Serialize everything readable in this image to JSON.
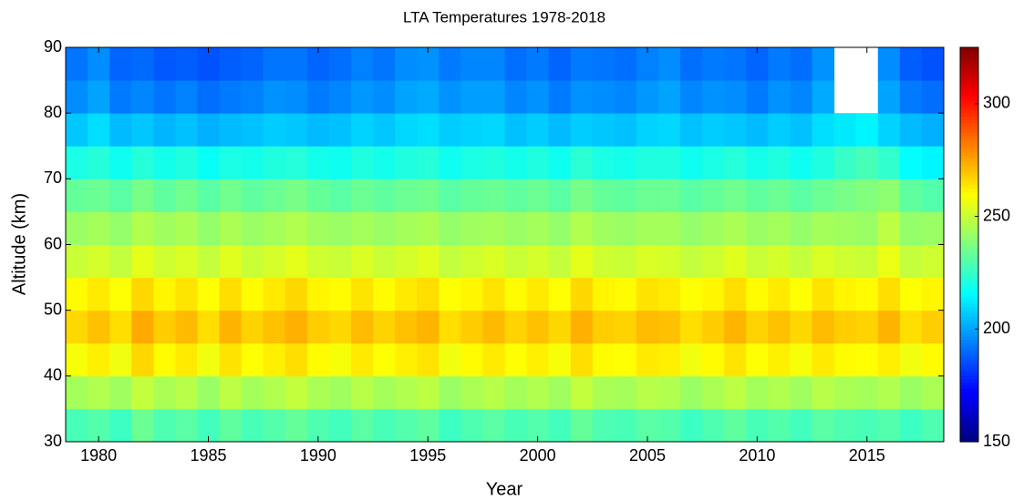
{
  "chart_data": {
    "type": "heatmap",
    "title": "LTA Temperatures 1978-2018",
    "x_label": "Year",
    "y_label": "Altitude (km)",
    "colormap": "jet",
    "x": [
      1979,
      1980,
      1981,
      1982,
      1983,
      1984,
      1985,
      1986,
      1987,
      1988,
      1989,
      1990,
      1991,
      1992,
      1993,
      1994,
      1995,
      1996,
      1997,
      1998,
      1999,
      2000,
      2001,
      2002,
      2003,
      2004,
      2005,
      2006,
      2007,
      2008,
      2009,
      2010,
      2011,
      2012,
      2013,
      2014,
      2015,
      2016,
      2017,
      2018
    ],
    "y": [
      32.5,
      37.5,
      42.5,
      47.5,
      52.5,
      57.5,
      62.5,
      67.5,
      72.5,
      77.5,
      82.5,
      87.5
    ],
    "xlim": [
      1978.5,
      2018.5
    ],
    "xticks": [
      1980,
      1985,
      1990,
      1995,
      2000,
      2005,
      2010,
      2015
    ],
    "ylim": [
      30,
      90
    ],
    "yticks": [
      30,
      40,
      50,
      60,
      70,
      80,
      90
    ],
    "zlim": [
      150,
      325
    ],
    "zticks": [
      150,
      200,
      250,
      300
    ],
    "z": [
      [
        228,
        230,
        226,
        234,
        229,
        231,
        227,
        232,
        228,
        230,
        233,
        229,
        227,
        231,
        228,
        230,
        232,
        226,
        229,
        231,
        228,
        230,
        227,
        233,
        229,
        228,
        231,
        230,
        226,
        229,
        232,
        228,
        230,
        227,
        231,
        229,
        228,
        230,
        226,
        229
      ],
      [
        244,
        246,
        243,
        249,
        245,
        247,
        242,
        248,
        244,
        246,
        249,
        245,
        243,
        247,
        244,
        246,
        248,
        242,
        245,
        247,
        244,
        246,
        243,
        249,
        245,
        244,
        247,
        246,
        242,
        245,
        248,
        244,
        246,
        243,
        247,
        245,
        244,
        246,
        242,
        245
      ],
      [
        258,
        262,
        257,
        266,
        260,
        263,
        257,
        264,
        259,
        262,
        265,
        260,
        258,
        263,
        259,
        262,
        264,
        257,
        260,
        263,
        259,
        262,
        258,
        265,
        260,
        259,
        263,
        262,
        257,
        260,
        264,
        259,
        262,
        258,
        263,
        260,
        259,
        262,
        257,
        260
      ],
      [
        266,
        270,
        265,
        274,
        268,
        271,
        265,
        272,
        267,
        270,
        273,
        268,
        266,
        271,
        267,
        270,
        272,
        265,
        268,
        271,
        267,
        270,
        266,
        273,
        268,
        267,
        271,
        270,
        265,
        268,
        272,
        267,
        270,
        266,
        271,
        268,
        267,
        272,
        265,
        268
      ],
      [
        260,
        263,
        259,
        266,
        261,
        264,
        259,
        265,
        260,
        263,
        266,
        261,
        260,
        264,
        260,
        263,
        265,
        259,
        261,
        264,
        260,
        263,
        259,
        266,
        261,
        260,
        264,
        263,
        259,
        261,
        265,
        260,
        263,
        259,
        264,
        261,
        260,
        265,
        259,
        261
      ],
      [
        250,
        252,
        249,
        255,
        251,
        253,
        249,
        254,
        250,
        252,
        255,
        251,
        250,
        253,
        250,
        252,
        254,
        249,
        251,
        253,
        250,
        252,
        249,
        255,
        251,
        250,
        253,
        252,
        249,
        251,
        254,
        250,
        252,
        249,
        253,
        251,
        250,
        256,
        249,
        251
      ],
      [
        242,
        244,
        241,
        246,
        243,
        245,
        241,
        245,
        242,
        244,
        246,
        243,
        242,
        244,
        242,
        244,
        245,
        241,
        243,
        244,
        242,
        244,
        241,
        246,
        243,
        242,
        244,
        244,
        241,
        243,
        245,
        242,
        244,
        241,
        244,
        243,
        242,
        248,
        241,
        242
      ],
      [
        233,
        234,
        231,
        236,
        232,
        235,
        231,
        235,
        232,
        234,
        236,
        233,
        231,
        234,
        232,
        234,
        235,
        231,
        233,
        234,
        232,
        234,
        231,
        236,
        233,
        232,
        234,
        234,
        231,
        233,
        235,
        232,
        234,
        231,
        234,
        236,
        238,
        240,
        232,
        230
      ],
      [
        220,
        222,
        218,
        222,
        219,
        221,
        217,
        220,
        219,
        221,
        222,
        219,
        218,
        221,
        219,
        221,
        222,
        218,
        220,
        221,
        219,
        221,
        218,
        223,
        220,
        219,
        221,
        221,
        218,
        220,
        222,
        219,
        221,
        218,
        221,
        225,
        228,
        224,
        216,
        214
      ],
      [
        206,
        210,
        204,
        206,
        203,
        205,
        202,
        204,
        205,
        207,
        206,
        204,
        205,
        208,
        206,
        209,
        210,
        207,
        208,
        209,
        205,
        207,
        204,
        207,
        206,
        205,
        208,
        209,
        205,
        207,
        206,
        204,
        207,
        205,
        210,
        212,
        214,
        208,
        204,
        202
      ],
      [
        196,
        200,
        193,
        195,
        192,
        194,
        191,
        193,
        194,
        197,
        196,
        193,
        195,
        198,
        196,
        200,
        201,
        197,
        199,
        199,
        195,
        197,
        193,
        197,
        196,
        195,
        198,
        200,
        195,
        197,
        196,
        193,
        197,
        195,
        201,
        null,
        null,
        200,
        193,
        191
      ],
      [
        192,
        196,
        189,
        190,
        187,
        188,
        186,
        188,
        189,
        192,
        192,
        189,
        191,
        194,
        192,
        196,
        197,
        193,
        195,
        195,
        191,
        193,
        189,
        193,
        192,
        191,
        194,
        196,
        191,
        193,
        192,
        189,
        193,
        191,
        197,
        null,
        null,
        196,
        188,
        186
      ]
    ]
  }
}
